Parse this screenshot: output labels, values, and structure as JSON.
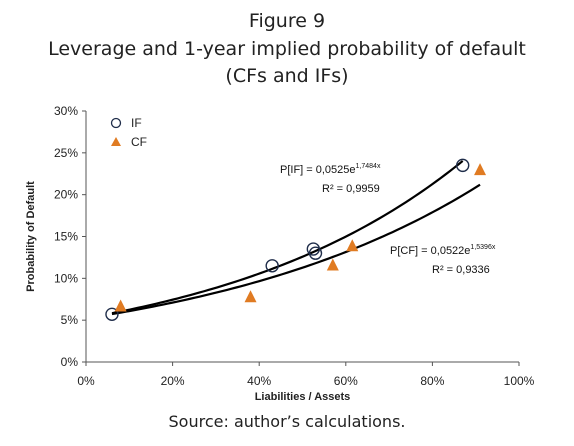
{
  "figure": {
    "label": "Figure 9",
    "title_line1": "Leverage and 1-year implied probability of default",
    "title_line2": "(CFs and IFs)",
    "source": "Source: author’s calculations."
  },
  "chart_data": {
    "type": "scatter",
    "xlabel": "Liabilities / Assets",
    "ylabel": "Probability of Default",
    "xlim": [
      0,
      100
    ],
    "ylim": [
      0,
      30
    ],
    "x_ticks": [
      "0%",
      "20%",
      "40%",
      "60%",
      "80%",
      "100%"
    ],
    "y_ticks": [
      "0%",
      "5%",
      "10%",
      "15%",
      "20%",
      "25%",
      "30%"
    ],
    "legend_placement": "top-left",
    "series": [
      {
        "name": "IF",
        "marker": "open-circle",
        "color": "#1f2d4a",
        "points": [
          [
            6,
            5.7
          ],
          [
            43,
            11.5
          ],
          [
            52.5,
            13.5
          ],
          [
            53,
            13.0
          ],
          [
            87,
            23.5
          ]
        ],
        "trendline": {
          "type": "exponential",
          "a": 0.0525,
          "b": 1.7484,
          "x_range": [
            6,
            87
          ]
        },
        "equation_text": "P[IF] = 0,0525e",
        "equation_exp": "1,7484x",
        "r2_text": "R² = 0,9959"
      },
      {
        "name": "CF",
        "marker": "triangle",
        "color": "#e07b22",
        "points": [
          [
            8,
            6.7
          ],
          [
            38,
            7.8
          ],
          [
            57,
            11.6
          ],
          [
            61.5,
            13.9
          ],
          [
            91,
            23.0
          ]
        ],
        "trendline": {
          "type": "exponential",
          "a": 0.0522,
          "b": 1.5396,
          "x_range": [
            6,
            91
          ]
        },
        "equation_text": "P[CF] = 0,0522e",
        "equation_exp": "1,5396x",
        "r2_text": "R² = 0,9336"
      }
    ]
  }
}
